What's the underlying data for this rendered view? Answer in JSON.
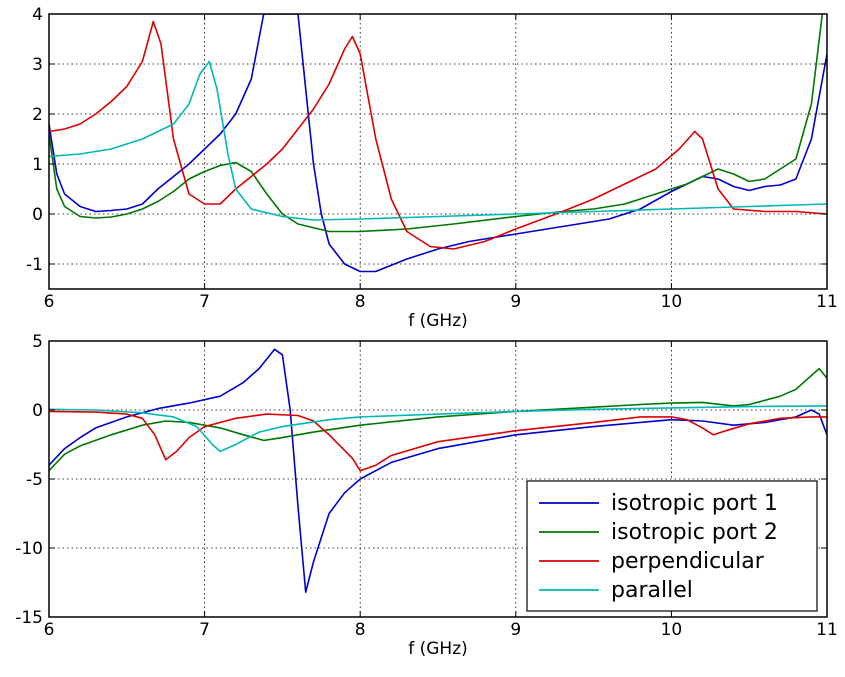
{
  "chart_data": [
    {
      "type": "line",
      "title": "",
      "xlabel": "f (GHz)",
      "ylabel": "",
      "xlim": [
        6,
        11
      ],
      "ylim": [
        -1.5,
        4
      ],
      "xticks": [
        "6",
        "7",
        "8",
        "9",
        "10",
        "11"
      ],
      "yticks": [
        "4",
        "3",
        "2",
        "1",
        "0",
        "-1"
      ],
      "grid": true,
      "series": [
        {
          "color": "#0000cc",
          "points": [
            [
              6,
              1.8
            ],
            [
              6.05,
              0.8
            ],
            [
              6.1,
              0.4
            ],
            [
              6.2,
              0.15
            ],
            [
              6.3,
              0.05
            ],
            [
              6.4,
              0.07
            ],
            [
              6.5,
              0.1
            ],
            [
              6.6,
              0.2
            ],
            [
              6.7,
              0.5
            ],
            [
              6.8,
              0.75
            ],
            [
              6.9,
              1.0
            ],
            [
              7.0,
              1.3
            ],
            [
              7.1,
              1.6
            ],
            [
              7.2,
              2.0
            ],
            [
              7.3,
              2.7
            ],
            [
              7.38,
              4.0
            ],
            [
              7.6,
              4.0
            ],
            [
              7.65,
              2.5
            ],
            [
              7.7,
              1.0
            ],
            [
              7.75,
              0.0
            ],
            [
              7.8,
              -0.6
            ],
            [
              7.9,
              -1.0
            ],
            [
              8.0,
              -1.15
            ],
            [
              8.1,
              -1.15
            ],
            [
              8.3,
              -0.9
            ],
            [
              8.5,
              -0.7
            ],
            [
              8.7,
              -0.55
            ],
            [
              9.0,
              -0.4
            ],
            [
              9.3,
              -0.25
            ],
            [
              9.6,
              -0.1
            ],
            [
              9.8,
              0.1
            ],
            [
              10.0,
              0.45
            ],
            [
              10.1,
              0.6
            ],
            [
              10.2,
              0.75
            ],
            [
              10.3,
              0.7
            ],
            [
              10.4,
              0.55
            ],
            [
              10.5,
              0.47
            ],
            [
              10.6,
              0.55
            ],
            [
              10.7,
              0.58
            ],
            [
              10.8,
              0.7
            ],
            [
              10.9,
              1.5
            ],
            [
              11.0,
              3.2
            ]
          ]
        },
        {
          "color": "#007700",
          "points": [
            [
              6,
              1.6
            ],
            [
              6.05,
              0.5
            ],
            [
              6.1,
              0.15
            ],
            [
              6.2,
              -0.05
            ],
            [
              6.3,
              -0.08
            ],
            [
              6.4,
              -0.06
            ],
            [
              6.5,
              0.0
            ],
            [
              6.6,
              0.1
            ],
            [
              6.7,
              0.25
            ],
            [
              6.8,
              0.45
            ],
            [
              6.9,
              0.7
            ],
            [
              7.0,
              0.85
            ],
            [
              7.1,
              0.97
            ],
            [
              7.2,
              1.03
            ],
            [
              7.3,
              0.85
            ],
            [
              7.4,
              0.4
            ],
            [
              7.5,
              0.0
            ],
            [
              7.6,
              -0.2
            ],
            [
              7.8,
              -0.35
            ],
            [
              8.0,
              -0.35
            ],
            [
              8.3,
              -0.3
            ],
            [
              8.6,
              -0.2
            ],
            [
              9.0,
              -0.05
            ],
            [
              9.3,
              0.05
            ],
            [
              9.5,
              0.1
            ],
            [
              9.7,
              0.2
            ],
            [
              9.9,
              0.4
            ],
            [
              10.1,
              0.6
            ],
            [
              10.2,
              0.75
            ],
            [
              10.3,
              0.9
            ],
            [
              10.4,
              0.8
            ],
            [
              10.5,
              0.65
            ],
            [
              10.6,
              0.7
            ],
            [
              10.7,
              0.9
            ],
            [
              10.8,
              1.1
            ],
            [
              10.9,
              2.2
            ],
            [
              10.97,
              4.0
            ]
          ]
        },
        {
          "color": "#dd0000",
          "points": [
            [
              6,
              1.65
            ],
            [
              6.1,
              1.7
            ],
            [
              6.2,
              1.8
            ],
            [
              6.3,
              2.0
            ],
            [
              6.4,
              2.25
            ],
            [
              6.5,
              2.55
            ],
            [
              6.6,
              3.05
            ],
            [
              6.67,
              3.85
            ],
            [
              6.72,
              3.4
            ],
            [
              6.8,
              1.5
            ],
            [
              6.9,
              0.4
            ],
            [
              7.0,
              0.2
            ],
            [
              7.1,
              0.2
            ],
            [
              7.2,
              0.5
            ],
            [
              7.3,
              0.75
            ],
            [
              7.4,
              1.0
            ],
            [
              7.5,
              1.3
            ],
            [
              7.6,
              1.7
            ],
            [
              7.7,
              2.1
            ],
            [
              7.8,
              2.6
            ],
            [
              7.9,
              3.3
            ],
            [
              7.95,
              3.55
            ],
            [
              8.0,
              3.2
            ],
            [
              8.1,
              1.5
            ],
            [
              8.2,
              0.3
            ],
            [
              8.3,
              -0.35
            ],
            [
              8.45,
              -0.65
            ],
            [
              8.6,
              -0.7
            ],
            [
              8.8,
              -0.55
            ],
            [
              9.0,
              -0.3
            ],
            [
              9.3,
              0.05
            ],
            [
              9.5,
              0.3
            ],
            [
              9.7,
              0.6
            ],
            [
              9.9,
              0.9
            ],
            [
              10.05,
              1.3
            ],
            [
              10.15,
              1.65
            ],
            [
              10.2,
              1.5
            ],
            [
              10.3,
              0.5
            ],
            [
              10.4,
              0.1
            ],
            [
              10.6,
              0.05
            ],
            [
              10.8,
              0.05
            ],
            [
              11.0,
              0.0
            ]
          ]
        },
        {
          "color": "#00b8b8",
          "points": [
            [
              6,
              1.15
            ],
            [
              6.2,
              1.2
            ],
            [
              6.4,
              1.3
            ],
            [
              6.6,
              1.5
            ],
            [
              6.8,
              1.8
            ],
            [
              6.9,
              2.2
            ],
            [
              6.97,
              2.8
            ],
            [
              7.03,
              3.05
            ],
            [
              7.08,
              2.5
            ],
            [
              7.15,
              1.2
            ],
            [
              7.2,
              0.5
            ],
            [
              7.3,
              0.1
            ],
            [
              7.5,
              -0.05
            ],
            [
              7.7,
              -0.12
            ],
            [
              8.0,
              -0.1
            ],
            [
              8.5,
              -0.05
            ],
            [
              9.0,
              0.0
            ],
            [
              9.5,
              0.05
            ],
            [
              10.0,
              0.1
            ],
            [
              10.5,
              0.15
            ],
            [
              11.0,
              0.2
            ]
          ]
        }
      ]
    },
    {
      "type": "line",
      "title": "",
      "xlabel": "f (GHz)",
      "ylabel": "",
      "xlim": [
        6,
        11
      ],
      "ylim": [
        -15,
        5
      ],
      "xticks": [
        "6",
        "7",
        "8",
        "9",
        "10",
        "11"
      ],
      "yticks": [
        "5",
        "0",
        "-5",
        "-10",
        "-15"
      ],
      "grid": true,
      "legend": {
        "location": "lower-right",
        "entries": [
          "isotropic port 1",
          "isotropic port 2",
          "perpendicular",
          "parallel"
        ]
      },
      "series": [
        {
          "name": "isotropic port 1",
          "color": "#0000cc",
          "points": [
            [
              6,
              -4
            ],
            [
              6.1,
              -2.8
            ],
            [
              6.2,
              -2.0
            ],
            [
              6.3,
              -1.3
            ],
            [
              6.5,
              -0.5
            ],
            [
              6.7,
              0.1
            ],
            [
              6.9,
              0.5
            ],
            [
              7.1,
              1.0
            ],
            [
              7.25,
              2.0
            ],
            [
              7.35,
              3.0
            ],
            [
              7.45,
              4.4
            ],
            [
              7.5,
              4.0
            ],
            [
              7.55,
              0.0
            ],
            [
              7.6,
              -7.0
            ],
            [
              7.65,
              -13.2
            ],
            [
              7.7,
              -11.0
            ],
            [
              7.8,
              -7.5
            ],
            [
              7.9,
              -6.0
            ],
            [
              8.0,
              -5.0
            ],
            [
              8.2,
              -3.8
            ],
            [
              8.5,
              -2.8
            ],
            [
              9.0,
              -1.8
            ],
            [
              9.5,
              -1.2
            ],
            [
              9.8,
              -0.9
            ],
            [
              10.0,
              -0.7
            ],
            [
              10.2,
              -0.8
            ],
            [
              10.4,
              -1.1
            ],
            [
              10.6,
              -0.9
            ],
            [
              10.8,
              -0.5
            ],
            [
              10.9,
              0.0
            ],
            [
              10.95,
              -0.3
            ],
            [
              11.0,
              -1.8
            ]
          ]
        },
        {
          "name": "isotropic port 2",
          "color": "#007700",
          "points": [
            [
              6,
              -4.4
            ],
            [
              6.1,
              -3.2
            ],
            [
              6.2,
              -2.6
            ],
            [
              6.4,
              -1.8
            ],
            [
              6.6,
              -1.1
            ],
            [
              6.75,
              -0.8
            ],
            [
              6.9,
              -0.9
            ],
            [
              7.1,
              -1.3
            ],
            [
              7.25,
              -1.8
            ],
            [
              7.38,
              -2.2
            ],
            [
              7.5,
              -2.0
            ],
            [
              7.7,
              -1.6
            ],
            [
              8.0,
              -1.1
            ],
            [
              8.5,
              -0.5
            ],
            [
              9.0,
              -0.1
            ],
            [
              9.5,
              0.2
            ],
            [
              9.8,
              0.4
            ],
            [
              10.0,
              0.5
            ],
            [
              10.2,
              0.55
            ],
            [
              10.4,
              0.3
            ],
            [
              10.5,
              0.4
            ],
            [
              10.7,
              1.0
            ],
            [
              10.8,
              1.5
            ],
            [
              10.9,
              2.5
            ],
            [
              10.95,
              3.0
            ],
            [
              11.0,
              2.3
            ]
          ]
        },
        {
          "name": "perpendicular",
          "color": "#dd0000",
          "points": [
            [
              6,
              -0.1
            ],
            [
              6.3,
              -0.15
            ],
            [
              6.5,
              -0.3
            ],
            [
              6.6,
              -0.6
            ],
            [
              6.68,
              -1.8
            ],
            [
              6.75,
              -3.6
            ],
            [
              6.82,
              -3.0
            ],
            [
              6.9,
              -2.0
            ],
            [
              7.0,
              -1.2
            ],
            [
              7.2,
              -0.6
            ],
            [
              7.4,
              -0.3
            ],
            [
              7.6,
              -0.4
            ],
            [
              7.7,
              -0.8
            ],
            [
              7.8,
              -1.8
            ],
            [
              7.95,
              -3.5
            ],
            [
              8.0,
              -4.4
            ],
            [
              8.1,
              -4.0
            ],
            [
              8.2,
              -3.3
            ],
            [
              8.5,
              -2.3
            ],
            [
              9.0,
              -1.5
            ],
            [
              9.5,
              -0.9
            ],
            [
              9.8,
              -0.5
            ],
            [
              10.0,
              -0.5
            ],
            [
              10.1,
              -0.7
            ],
            [
              10.2,
              -1.3
            ],
            [
              10.27,
              -1.8
            ],
            [
              10.35,
              -1.5
            ],
            [
              10.5,
              -1.0
            ],
            [
              10.7,
              -0.6
            ],
            [
              10.9,
              -0.5
            ],
            [
              11.0,
              -0.5
            ]
          ]
        },
        {
          "name": "parallel",
          "color": "#00b8b8",
          "points": [
            [
              6,
              0.05
            ],
            [
              6.3,
              0.0
            ],
            [
              6.6,
              -0.2
            ],
            [
              6.8,
              -0.5
            ],
            [
              6.95,
              -1.2
            ],
            [
              7.05,
              -2.5
            ],
            [
              7.1,
              -3.0
            ],
            [
              7.2,
              -2.5
            ],
            [
              7.35,
              -1.6
            ],
            [
              7.5,
              -1.2
            ],
            [
              7.8,
              -0.7
            ],
            [
              8.0,
              -0.5
            ],
            [
              8.5,
              -0.3
            ],
            [
              9.0,
              -0.1
            ],
            [
              9.5,
              0.05
            ],
            [
              10.0,
              0.15
            ],
            [
              10.5,
              0.25
            ],
            [
              11.0,
              0.3
            ]
          ]
        }
      ]
    }
  ]
}
